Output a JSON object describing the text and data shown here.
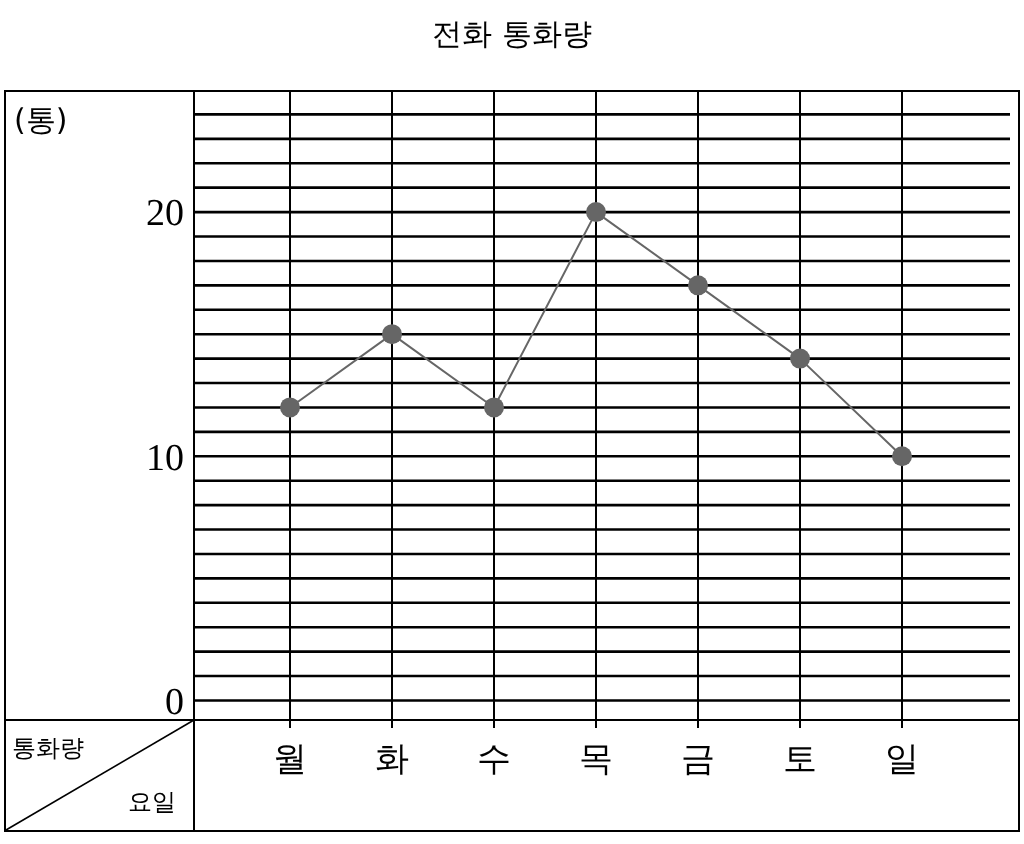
{
  "chart_data": {
    "type": "line",
    "title": "전화 통화량",
    "xlabel": "요일",
    "ylabel": "통화량",
    "annotations": [
      "(통)"
    ],
    "categories": [
      "월",
      "화",
      "수",
      "목",
      "금",
      "토",
      "일"
    ],
    "series": [
      {
        "color": "#666666",
        "values": [
          12,
          15,
          12,
          20,
          17,
          14,
          10
        ]
      }
    ],
    "ylim": [
      -0.8,
      25
    ],
    "yticks": [
      0,
      {
        "value": 1,
        "label": null
      },
      {
        "value": 2,
        "label": null
      },
      {
        "value": 3,
        "label": null
      },
      {
        "value": 4,
        "label": null
      },
      {
        "value": 5,
        "label": null
      },
      {
        "value": 6,
        "label": null
      },
      {
        "value": 7,
        "label": null
      },
      {
        "value": 8,
        "label": null
      },
      {
        "value": 9,
        "label": null
      },
      10,
      {
        "value": 11,
        "label": null
      },
      {
        "value": 12,
        "label": null
      },
      {
        "value": 13,
        "label": null
      },
      {
        "value": 14,
        "label": null
      },
      {
        "value": 15,
        "label": null
      },
      {
        "value": 16,
        "label": null
      },
      {
        "value": 17,
        "label": null
      },
      {
        "value": 18,
        "label": null
      },
      {
        "value": 19,
        "label": null
      },
      20,
      {
        "value": 21,
        "label": null
      },
      {
        "value": 22,
        "label": null
      },
      {
        "value": 23,
        "label": null
      },
      {
        "value": 24,
        "label": null
      }
    ],
    "grid": true,
    "marker": "circle",
    "line_style": "solid"
  }
}
